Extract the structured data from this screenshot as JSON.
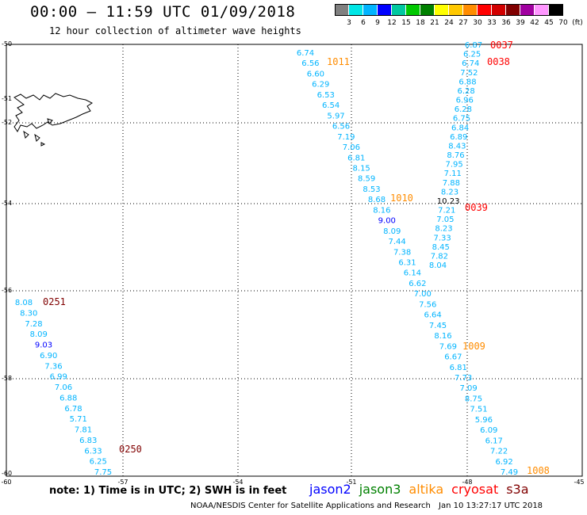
{
  "title": "00:00 – 11:59 UTC 01/09/2018",
  "subtitle": "12 hour collection of altimeter wave heights",
  "scale": {
    "labels": [
      "3",
      "6",
      "9",
      "12",
      "15",
      "18",
      "21",
      "24",
      "27",
      "30",
      "33",
      "36",
      "39",
      "42",
      "45",
      "70",
      "(ft)"
    ],
    "colors": [
      "#808080",
      "#00e6e6",
      "#00b4ff",
      "#0000ff",
      "#00c8a0",
      "#00c800",
      "#008000",
      "#ffff00",
      "#ffc800",
      "#ff8c00",
      "#ff0000",
      "#d20000",
      "#800000",
      "#a000a0",
      "#ff96ff",
      "#000000"
    ]
  },
  "axes": {
    "x_ticks": [
      "-60",
      "-57",
      "-54",
      "-51",
      "-48",
      "-45"
    ],
    "y_ticks": [
      "-50",
      "-51",
      "-52",
      "-54",
      "-56",
      "-58",
      "-60"
    ]
  },
  "tracks": [
    {
      "time": "0037",
      "color": "#ff0000"
    },
    {
      "time": "0038",
      "color": "#ff0000"
    },
    {
      "time": "1011",
      "color": "#ff8c00"
    },
    {
      "time": "1010",
      "color": "#ff8c00"
    },
    {
      "time": "0039",
      "color": "#ff0000"
    },
    {
      "time": "0251",
      "color": "#800000"
    },
    {
      "time": "1009",
      "color": "#ff8c00"
    },
    {
      "time": "0250",
      "color": "#800000"
    },
    {
      "time": "1008",
      "color": "#ff8c00"
    }
  ],
  "observations": {
    "track_1011": [
      "6.74",
      "6.56",
      "6.60",
      "6.29",
      "6.53",
      "6.54",
      "5.97",
      "6.56",
      "7.19",
      "7.06",
      "6.81",
      "8.15",
      "8.59",
      "8.53",
      "8.68",
      "8.16",
      "9.00",
      "8.09",
      "7.44",
      "7.38",
      "6.31",
      "6.14",
      "6.62",
      "7.00",
      "7.56",
      "6.64",
      "7.45",
      "8.16",
      "7.69",
      "6.67",
      "6.81",
      "7.73",
      "7.09",
      "8.75",
      "7.51",
      "5.96",
      "6.09",
      "6.17",
      "7.22",
      "6.92",
      "7.49"
    ],
    "track_0037": [
      "6.87",
      "6.25",
      "6.74",
      "7.52",
      "6.88",
      "6.28",
      "6.96",
      "6.28",
      "6.75",
      "6.84",
      "6.89",
      "8.43",
      "8.76",
      "7.95",
      "7.11",
      "7.88",
      "8.23",
      "10.23",
      "7.21",
      "7.05",
      "8.23",
      "7.33",
      "8.45",
      "7.82",
      "8.04"
    ],
    "track_0251": [
      "8.08",
      "8.30",
      "7.28",
      "8.09",
      "9.03",
      "6.90",
      "7.36",
      "6.99",
      "7.06",
      "6.88",
      "6.78",
      "5.71",
      "7.81",
      "6.83",
      "6.33",
      "6.25",
      "7.75"
    ]
  },
  "note": "note: 1) Time is in UTC; 2) SWH is in feet",
  "satellites": [
    {
      "name": "jason2",
      "color": "#0000ff"
    },
    {
      "name": "jason3",
      "color": "#008000"
    },
    {
      "name": "altika",
      "color": "#ff8c00"
    },
    {
      "name": "cryosat",
      "color": "#ff0000"
    },
    {
      "name": "s3a",
      "color": "#800000"
    }
  ],
  "credit": "NOAA/NESDIS Center for Satellite Applications and Research",
  "credit_date": "Jan 10 13:27:17 UTC 2018"
}
